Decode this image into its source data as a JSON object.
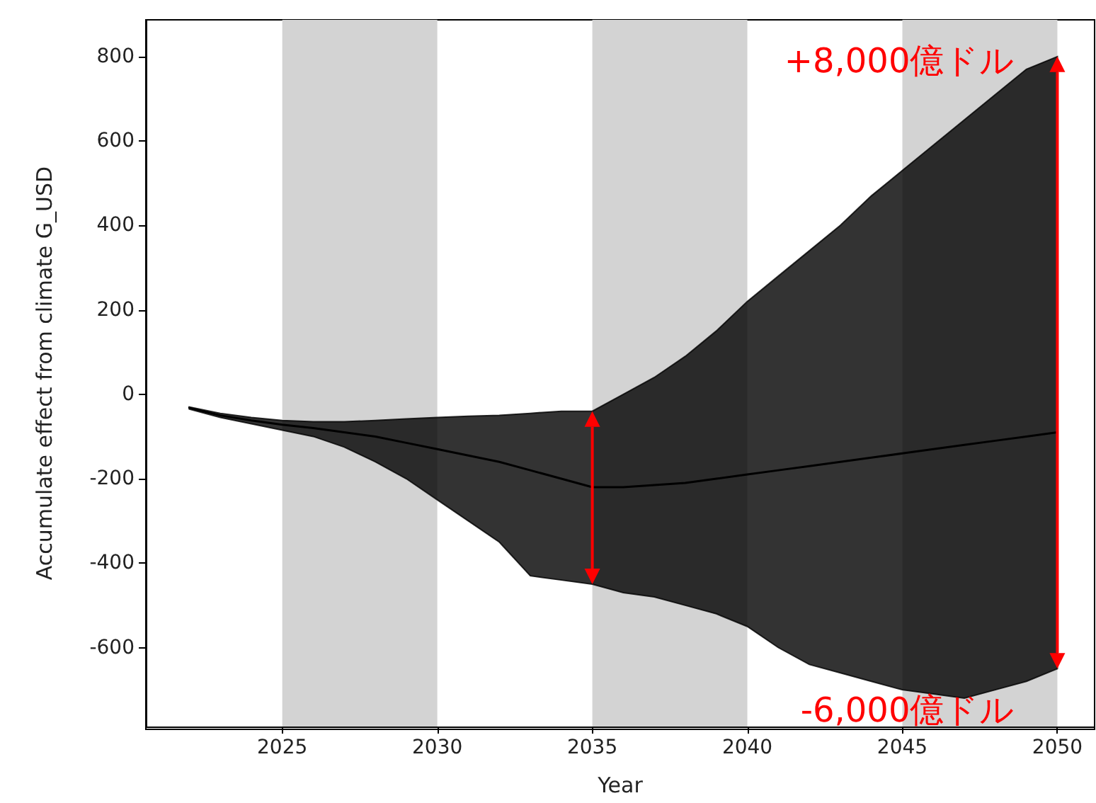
{
  "chart_data": {
    "type": "line",
    "xlabel": "Year",
    "ylabel": "Accumulate effect from climate G_USD",
    "x": [
      2022,
      2023,
      2024,
      2025,
      2026,
      2027,
      2028,
      2029,
      2030,
      2031,
      2032,
      2033,
      2034,
      2035,
      2036,
      2037,
      2038,
      2039,
      2040,
      2041,
      2042,
      2043,
      2044,
      2045,
      2046,
      2047,
      2048,
      2049,
      2050
    ],
    "series": [
      {
        "color": "#000000",
        "values": [
          -32,
          -50,
          -62,
          -72,
          -80,
          -90,
          -100,
          -115,
          -130,
          -145,
          -160,
          -180,
          -200,
          -220,
          -220,
          -215,
          -210,
          -200,
          -190,
          -180,
          -170,
          -160,
          -150,
          -140,
          -130,
          -120,
          -110,
          -100,
          -90
        ],
        "upper": [
          -30,
          -45,
          -55,
          -62,
          -65,
          -65,
          -62,
          -58,
          -55,
          -52,
          -50,
          -45,
          -40,
          -40,
          0,
          40,
          90,
          150,
          220,
          280,
          340,
          400,
          470,
          530,
          590,
          650,
          710,
          770,
          800
        ],
        "lower": [
          -35,
          -55,
          -70,
          -85,
          -100,
          -125,
          -160,
          -200,
          -250,
          -300,
          -350,
          -430,
          -440,
          -450,
          -470,
          -480,
          -500,
          -520,
          -550,
          -600,
          -640,
          -660,
          -680,
          -700,
          -710,
          -720,
          -700,
          -680,
          -650
        ]
      }
    ],
    "xlim": [
      2020.6,
      2051.2
    ],
    "xticks": [
      2025,
      2030,
      2035,
      2040,
      2045,
      2050
    ],
    "ylim": [
      -787,
      887
    ],
    "yticks": [
      -600,
      -400,
      -200,
      0,
      200,
      400,
      600,
      800
    ],
    "grid": false,
    "legend": false,
    "marker": "none",
    "line_style": "solid",
    "bands": [
      {
        "axis": "x",
        "from": 2025,
        "to": 2030,
        "label": null,
        "color": "#d3d3d3"
      },
      {
        "axis": "x",
        "from": 2035,
        "to": 2040,
        "label": null,
        "color": "#d3d3d3"
      },
      {
        "axis": "x",
        "from": 2045,
        "to": 2050,
        "label": null,
        "color": "#d3d3d3"
      }
    ],
    "ref_lines": [
      {
        "axis": "x",
        "value": 2035,
        "label": null,
        "color": "#ff0000"
      },
      {
        "axis": "x",
        "value": 2050,
        "label": null,
        "color": "#ff0000"
      }
    ],
    "annotations": [
      {
        "text": "+8,000億ドル",
        "x": 2050,
        "y": 790
      },
      {
        "text": "-6,000億ドル",
        "x": 2050,
        "y": -748
      }
    ]
  }
}
